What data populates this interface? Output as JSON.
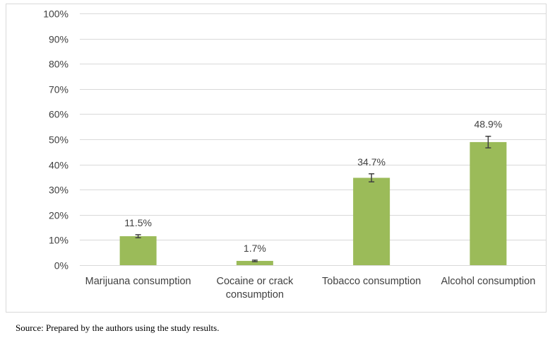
{
  "chart_data": {
    "type": "bar",
    "categories": [
      [
        "Marijuana consumption"
      ],
      [
        "Cocaine or crack",
        "consumption"
      ],
      [
        "Tobacco consumption"
      ],
      [
        "Alcohol consumption"
      ]
    ],
    "values": [
      11.5,
      1.7,
      34.7,
      48.9
    ],
    "data_labels": [
      "11.5%",
      "1.7%",
      "34.7%",
      "48.9%"
    ],
    "error_low": [
      10.9,
      1.4,
      33.1,
      46.6
    ],
    "error_high": [
      12.1,
      2.0,
      36.3,
      51.2
    ],
    "ylim": [
      0,
      100
    ],
    "yticks": [
      0,
      10,
      20,
      30,
      40,
      50,
      60,
      70,
      80,
      90,
      100
    ],
    "ytick_labels": [
      "0%",
      "10%",
      "20%",
      "30%",
      "40%",
      "50%",
      "60%",
      "70%",
      "80%",
      "90%",
      "100%"
    ],
    "grid": true,
    "bar_color": "#9bbb59",
    "error_bar_color": "#404040",
    "gridline_color": "#d9d9d9"
  },
  "source_note": "Source: Prepared by the authors using the study results."
}
